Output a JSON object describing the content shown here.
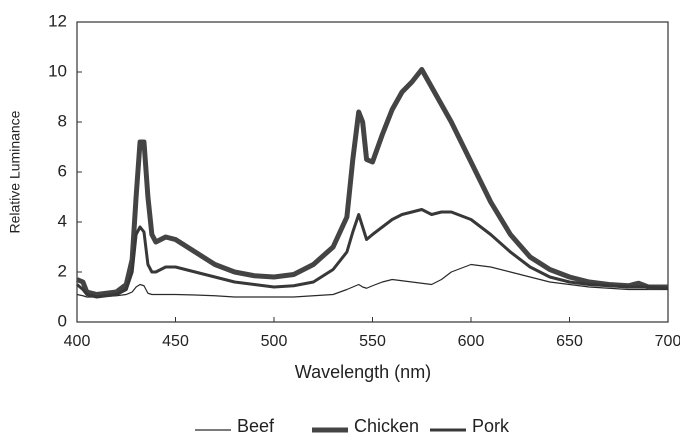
{
  "chart_data": {
    "type": "line",
    "xlabel": "Wavelength (nm)",
    "ylabel": "Relative Luminance",
    "x": [
      400,
      403,
      405,
      410,
      420,
      425,
      428,
      430,
      432,
      434,
      436,
      438,
      440,
      445,
      450,
      460,
      470,
      480,
      490,
      500,
      510,
      520,
      530,
      537,
      540,
      543,
      545,
      547,
      550,
      555,
      560,
      565,
      570,
      575,
      580,
      585,
      590,
      600,
      610,
      620,
      630,
      640,
      650,
      660,
      670,
      680,
      685,
      690,
      700
    ],
    "series": [
      {
        "name": "Beef",
        "color": "#2a2a2a",
        "width": 1.2,
        "values": [
          1.1,
          1.05,
          1.0,
          1.0,
          1.05,
          1.1,
          1.2,
          1.4,
          1.5,
          1.45,
          1.15,
          1.1,
          1.1,
          1.1,
          1.1,
          1.08,
          1.05,
          1.0,
          1.0,
          1.0,
          1.0,
          1.05,
          1.1,
          1.3,
          1.4,
          1.5,
          1.4,
          1.35,
          1.45,
          1.6,
          1.7,
          1.65,
          1.6,
          1.55,
          1.5,
          1.7,
          2.0,
          2.3,
          2.2,
          2.0,
          1.8,
          1.6,
          1.5,
          1.4,
          1.35,
          1.3,
          1.3,
          1.3,
          1.3
        ]
      },
      {
        "name": "Chicken",
        "color": "#444444",
        "width": 5,
        "values": [
          1.7,
          1.6,
          1.2,
          1.1,
          1.2,
          1.5,
          2.5,
          5.0,
          7.2,
          7.2,
          5.0,
          3.5,
          3.2,
          3.4,
          3.3,
          2.8,
          2.3,
          2.0,
          1.85,
          1.8,
          1.9,
          2.3,
          3.0,
          4.2,
          6.5,
          8.4,
          8.0,
          6.5,
          6.4,
          7.5,
          8.5,
          9.2,
          9.6,
          10.1,
          9.4,
          8.7,
          8.0,
          6.4,
          4.8,
          3.5,
          2.6,
          2.1,
          1.8,
          1.6,
          1.5,
          1.45,
          1.55,
          1.4,
          1.4
        ]
      },
      {
        "name": "Pork",
        "color": "#383838",
        "width": 3,
        "values": [
          1.5,
          1.3,
          1.1,
          1.0,
          1.1,
          1.3,
          2.0,
          3.5,
          3.8,
          3.6,
          2.3,
          2.0,
          2.0,
          2.2,
          2.2,
          2.0,
          1.8,
          1.6,
          1.5,
          1.4,
          1.45,
          1.6,
          2.1,
          2.8,
          3.6,
          4.3,
          3.8,
          3.3,
          3.5,
          3.8,
          4.1,
          4.3,
          4.4,
          4.5,
          4.3,
          4.4,
          4.4,
          4.1,
          3.5,
          2.8,
          2.2,
          1.8,
          1.6,
          1.5,
          1.45,
          1.4,
          1.4,
          1.4,
          1.35
        ]
      }
    ],
    "xlim": [
      400,
      700
    ],
    "xticks": [
      400,
      450,
      500,
      550,
      600,
      650,
      700
    ],
    "ylim": [
      0,
      12
    ],
    "yticks": [
      0,
      2,
      4,
      6,
      8,
      10,
      12
    ],
    "grid": false,
    "legend": "bottom"
  }
}
